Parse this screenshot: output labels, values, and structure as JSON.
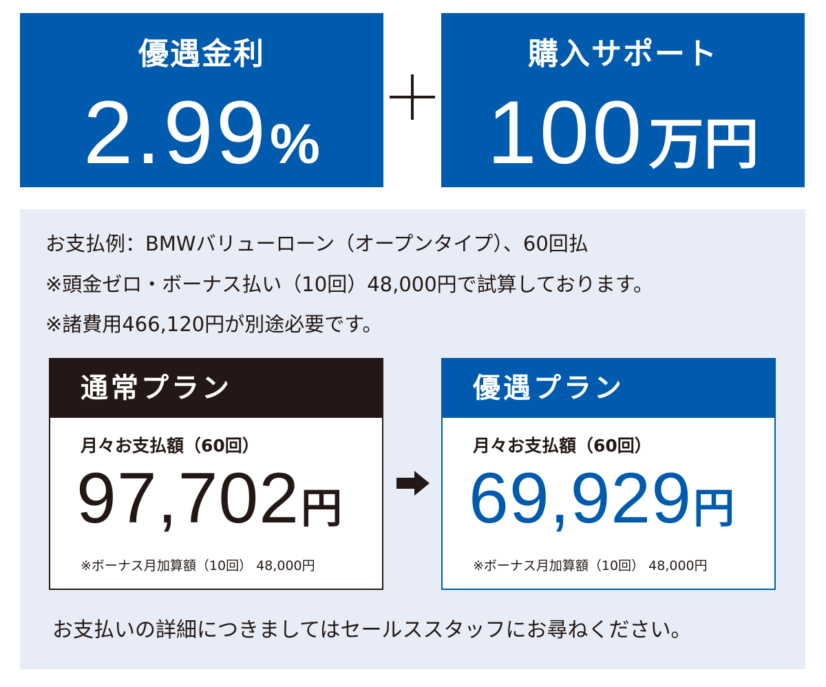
{
  "promo": {
    "rate_title": "優遇金利",
    "rate_value": "2.99",
    "rate_unit": "%",
    "support_title": "購入サポート",
    "support_value": "100",
    "support_unit": "万円"
  },
  "notes": [
    "お支払例：BMWバリューローン（オープンタイプ）、60回払",
    "※頭金ゼロ・ボーナス払い（10回）48,000円で試算しております。",
    "※諸費用466,120円が別途必要です。"
  ],
  "plans": {
    "normal": {
      "title": "通常プラン",
      "label": "月々お支払額（60回）",
      "amount": "97,702",
      "unit": "円",
      "bonus": "※ボーナス月加算額（10回） 48,000円"
    },
    "special": {
      "title": "優遇プラン",
      "label": "月々お支払額（60回）",
      "amount": "69,929",
      "unit": "円",
      "bonus": "※ボーナス月加算額（10回） 48,000円"
    }
  },
  "footer": "お支払いの詳細につきましてはセールススタッフにお尋ねください。",
  "colors": {
    "brand_blue": "#005aad",
    "dark": "#231815",
    "panel_bg": "#e7ecf6"
  },
  "icons": {
    "plus": "plus-icon",
    "arrow": "arrow-right-icon"
  }
}
